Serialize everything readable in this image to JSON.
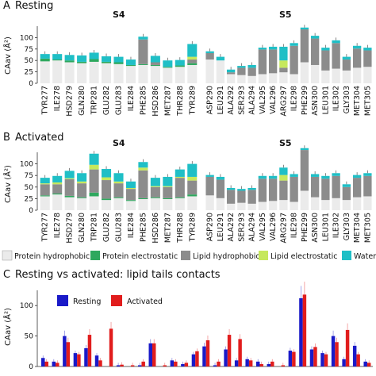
{
  "colors": {
    "protein_hydrophobic": "#ebebeb",
    "protein_electrostatic": "#2ea85e",
    "lipid_hydrophobic": "#8c8c8c",
    "lipid_electrostatic": "#c6e85c",
    "water": "#1fbfc6",
    "resting": "#1a1ac8",
    "activated": "#e11d1d"
  },
  "legend": {
    "stack": [
      "Protein hydrophobic",
      "Protein electrostatic",
      "Lipid hydrophobic",
      "Lipid electrostatic",
      "Water"
    ],
    "bars": [
      "Resting",
      "Activated"
    ]
  },
  "chart_data": [
    {
      "type": "bar",
      "stacked": true,
      "panel_label": "A",
      "title": "Resting",
      "segment_labels": [
        "S4",
        "S5"
      ],
      "ylabel": "CAav (Å²)",
      "ylim": [
        0,
        125
      ],
      "yticks": [
        0,
        25,
        50,
        75,
        100
      ],
      "categories_left": [
        "TYR277",
        "ILE278",
        "HSD279",
        "GLN280",
        "TRP281",
        "GLU282",
        "GLU283",
        "ILE284",
        "PHE285",
        "HSD286",
        "MET287",
        "THR288",
        "TYR289"
      ],
      "categories_right": [
        "ASP290",
        "LEU291",
        "ALA292",
        "SER293",
        "ALA294",
        "VAL295",
        "VAL296",
        "ARG297",
        "ILE298",
        "PHE299",
        "ASN300",
        "LEU301",
        "ILE302",
        "GLY303",
        "MET304",
        "MET305"
      ],
      "series_order": [
        "Protein hydrophobic",
        "Protein electrostatic",
        "Lipid hydrophobic",
        "Lipid electrostatic",
        "Water"
      ],
      "values_left": [
        [
          48,
          6,
          0,
          0,
          10
        ],
        [
          50,
          2,
          0,
          0,
          12
        ],
        [
          46,
          4,
          0,
          0,
          12
        ],
        [
          44,
          3,
          0,
          0,
          14
        ],
        [
          47,
          6,
          0,
          0,
          14
        ],
        [
          44,
          3,
          0,
          0,
          12
        ],
        [
          42,
          4,
          0,
          0,
          12
        ],
        [
          38,
          2,
          0,
          0,
          12
        ],
        [
          40,
          2,
          54,
          0,
          6
        ],
        [
          38,
          2,
          6,
          0,
          14
        ],
        [
          34,
          2,
          0,
          0,
          14
        ],
        [
          36,
          3,
          0,
          0,
          12
        ],
        [
          40,
          4,
          8,
          6,
          28
        ]
      ],
      "values_right": [
        [
          52,
          0,
          14,
          0,
          4
        ],
        [
          50,
          0,
          0,
          0,
          8
        ],
        [
          20,
          0,
          4,
          0,
          6
        ],
        [
          18,
          0,
          16,
          0,
          4
        ],
        [
          16,
          0,
          18,
          0,
          6
        ],
        [
          20,
          0,
          54,
          0,
          4
        ],
        [
          22,
          0,
          52,
          0,
          6
        ],
        [
          24,
          0,
          10,
          16,
          30
        ],
        [
          20,
          0,
          62,
          0,
          6
        ],
        [
          46,
          0,
          72,
          0,
          4
        ],
        [
          40,
          0,
          58,
          0,
          6
        ],
        [
          28,
          0,
          44,
          0,
          6
        ],
        [
          32,
          0,
          56,
          0,
          6
        ],
        [
          28,
          0,
          24,
          0,
          6
        ],
        [
          34,
          0,
          42,
          0,
          6
        ],
        [
          36,
          0,
          36,
          0,
          6
        ]
      ]
    },
    {
      "type": "bar",
      "stacked": true,
      "panel_label": "B",
      "title": "Activated",
      "segment_labels": [
        "S4",
        "S5"
      ],
      "ylabel": "CAav (Å²)",
      "ylim": [
        0,
        125
      ],
      "yticks": [
        0,
        25,
        50,
        75,
        100
      ],
      "categories_left": [
        "TYR277",
        "ILE278",
        "HSD279",
        "GLN280",
        "TRP281",
        "GLU282",
        "GLU283",
        "ILE284",
        "PHE285",
        "HSD286",
        "MET287",
        "THR288",
        "TYR289"
      ],
      "categories_right": [
        "ASP290",
        "LEU291",
        "ALA292",
        "SER293",
        "ALA294",
        "VAL295",
        "VAL296",
        "ARG297",
        "ILE298",
        "PHE299",
        "ASN300",
        "LEU301",
        "ILE302",
        "GLY303",
        "MET304",
        "MET305"
      ],
      "series_order": [
        "Protein hydrophobic",
        "Protein electrostatic",
        "Lipid hydrophobic",
        "Lipid electrostatic",
        "Water"
      ],
      "values_left": [
        [
          30,
          2,
          24,
          2,
          12
        ],
        [
          34,
          2,
          20,
          4,
          14
        ],
        [
          28,
          3,
          36,
          2,
          16
        ],
        [
          26,
          2,
          30,
          4,
          18
        ],
        [
          30,
          8,
          50,
          10,
          24
        ],
        [
          22,
          3,
          40,
          6,
          18
        ],
        [
          26,
          2,
          30,
          4,
          18
        ],
        [
          20,
          2,
          24,
          2,
          14
        ],
        [
          24,
          2,
          60,
          6,
          12
        ],
        [
          26,
          2,
          22,
          2,
          18
        ],
        [
          24,
          2,
          24,
          2,
          20
        ],
        [
          26,
          2,
          42,
          2,
          16
        ],
        [
          30,
          4,
          30,
          8,
          28
        ]
      ],
      "values_right": [
        [
          32,
          0,
          40,
          0,
          4
        ],
        [
          26,
          0,
          40,
          0,
          6
        ],
        [
          14,
          0,
          30,
          0,
          4
        ],
        [
          16,
          0,
          26,
          0,
          4
        ],
        [
          14,
          0,
          30,
          0,
          4
        ],
        [
          18,
          0,
          50,
          0,
          6
        ],
        [
          20,
          0,
          48,
          0,
          6
        ],
        [
          22,
          0,
          42,
          12,
          16
        ],
        [
          18,
          0,
          54,
          0,
          6
        ],
        [
          42,
          0,
          88,
          0,
          4
        ],
        [
          28,
          0,
          44,
          0,
          6
        ],
        [
          22,
          0,
          46,
          0,
          6
        ],
        [
          26,
          0,
          48,
          0,
          6
        ],
        [
          22,
          0,
          28,
          0,
          6
        ],
        [
          28,
          0,
          42,
          0,
          6
        ],
        [
          30,
          0,
          44,
          0,
          6
        ]
      ]
    },
    {
      "type": "bar",
      "panel_label": "C",
      "title": "Resting vs activated: lipid tails contacts",
      "ylabel": "CAav (Å²)",
      "ylim": [
        0,
        125
      ],
      "yticks": [
        0,
        50,
        100
      ],
      "series": [
        {
          "name": "Resting",
          "values": [
            14,
            8,
            50,
            22,
            30,
            18,
            0,
            2,
            0,
            2,
            38,
            0,
            10,
            4,
            20,
            33,
            2,
            28,
            10,
            12,
            8,
            4,
            0,
            26,
            112,
            28,
            22,
            50,
            12,
            34,
            8
          ]
        },
        {
          "name": "Activated",
          "values": [
            8,
            6,
            40,
            20,
            52,
            10,
            62,
            3,
            2,
            8,
            38,
            2,
            8,
            6,
            25,
            43,
            8,
            52,
            45,
            10,
            4,
            8,
            2,
            24,
            118,
            32,
            20,
            40,
            60,
            20,
            6
          ]
        }
      ]
    }
  ]
}
